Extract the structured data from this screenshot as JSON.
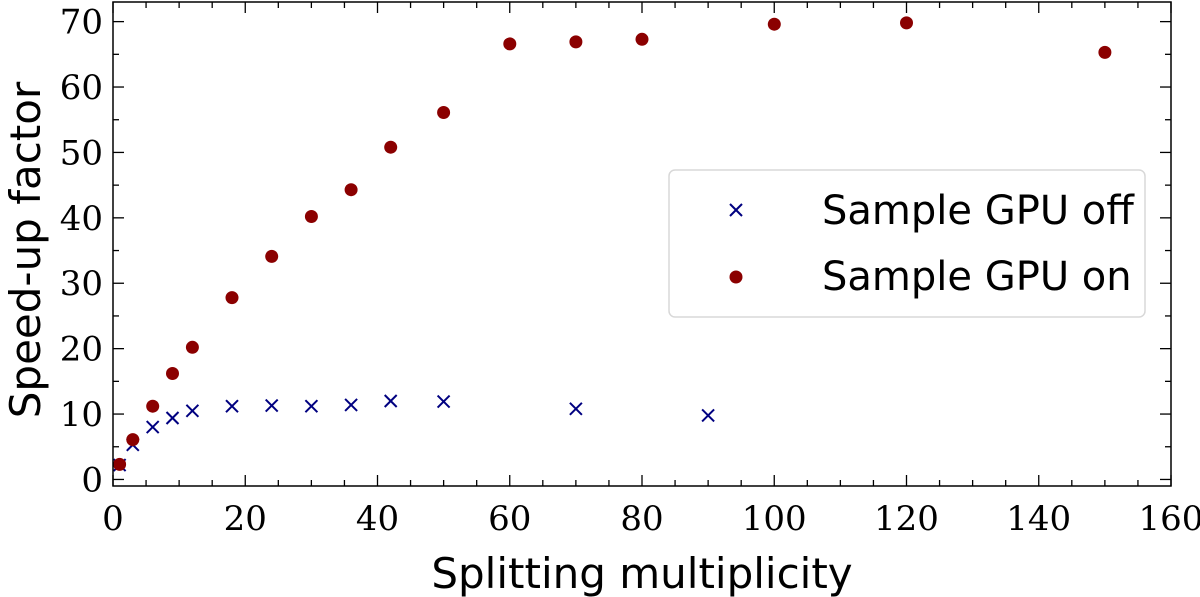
{
  "chart_data": {
    "type": "scatter",
    "title": "",
    "xlabel": "Splitting multiplicity",
    "ylabel": "Speed-up factor",
    "xlim": [
      0,
      160
    ],
    "ylim": [
      -1,
      73
    ],
    "x_ticks": [
      0,
      20,
      40,
      60,
      80,
      100,
      120,
      140,
      160
    ],
    "y_ticks": [
      0,
      10,
      20,
      30,
      40,
      50,
      60,
      70
    ],
    "grid": false,
    "legend_position": "center-right",
    "series": [
      {
        "name": "Sample GPU off",
        "marker": "x",
        "color": "#000080",
        "x": [
          1,
          3,
          6,
          9,
          12,
          18,
          24,
          30,
          36,
          42,
          50,
          70,
          90
        ],
        "y": [
          2.2,
          5.3,
          8.0,
          9.4,
          10.5,
          11.2,
          11.3,
          11.2,
          11.4,
          12.0,
          11.9,
          10.8,
          9.8
        ]
      },
      {
        "name": "Sample GPU on",
        "marker": "circle",
        "color": "#8b0000",
        "x": [
          1,
          3,
          6,
          9,
          12,
          18,
          24,
          30,
          36,
          42,
          50,
          60,
          70,
          80,
          100,
          120,
          150
        ],
        "y": [
          2.3,
          6.1,
          11.2,
          16.2,
          20.2,
          27.8,
          34.1,
          40.2,
          44.3,
          50.8,
          56.1,
          66.6,
          66.9,
          67.3,
          69.6,
          69.8,
          65.3
        ]
      }
    ]
  }
}
